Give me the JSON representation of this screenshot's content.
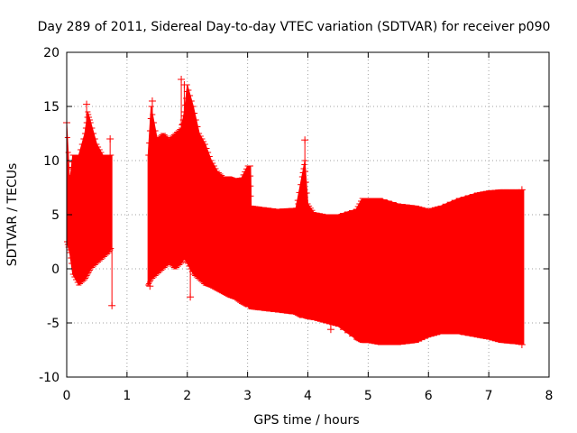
{
  "chart_data": {
    "type": "scatter",
    "title": "Day 289 of 2011, Sidereal Day-to-day VTEC variation (SDTVAR) for receiver p090",
    "xlabel": "GPS time / hours",
    "ylabel": "SDTVAR / TECUs",
    "xlim": [
      0,
      8
    ],
    "ylim": [
      -10,
      20
    ],
    "xticks": [
      "0",
      "1",
      "2",
      "3",
      "4",
      "5",
      "6",
      "7",
      "8"
    ],
    "yticks": [
      "-10",
      "-5",
      "0",
      "5",
      "10",
      "15",
      "20"
    ],
    "grid": true,
    "series_color": "#ff0000",
    "series": [
      {
        "name": "SDTVAR",
        "envelope": {
          "x": [
            0.0,
            0.05,
            0.1,
            0.2,
            0.3,
            0.35,
            0.4,
            0.5,
            0.6,
            0.7,
            0.75
          ],
          "upper": [
            13.5,
            8.0,
            10.5,
            10.5,
            12.5,
            14.5,
            13.5,
            11.5,
            10.5,
            10.5,
            10.5
          ],
          "lower": [
            2.5,
            1.5,
            -0.5,
            -1.5,
            -1.0,
            -0.5,
            0.0,
            0.5,
            1.0,
            1.5,
            2.0
          ]
        },
        "envelope2": {
          "x": [
            1.35,
            1.4,
            1.5,
            1.6,
            1.7,
            1.8,
            1.9,
            1.95,
            2.0,
            2.1,
            2.2,
            2.3,
            2.4,
            2.5,
            2.6,
            2.7,
            2.8,
            2.9,
            3.0,
            3.05,
            3.06,
            3.2,
            3.5,
            3.8,
            3.9,
            3.95,
            4.0,
            4.1,
            4.3,
            4.5,
            4.8,
            4.9,
            5.0,
            5.2,
            5.5,
            5.8,
            6.0,
            6.2,
            6.5,
            6.8,
            7.0,
            7.2,
            7.58
          ],
          "upper": [
            10.5,
            15.0,
            12.0,
            12.5,
            12.0,
            12.5,
            13.0,
            14.5,
            17.0,
            15.0,
            12.5,
            11.5,
            10.0,
            9.0,
            8.5,
            8.5,
            8.3,
            8.4,
            9.5,
            9.5,
            5.8,
            5.7,
            5.5,
            5.6,
            8.5,
            10.0,
            6.0,
            5.2,
            5.0,
            5.0,
            5.5,
            6.5,
            6.5,
            6.5,
            6.0,
            5.8,
            5.5,
            5.8,
            6.5,
            7.0,
            7.2,
            7.3,
            7.3
          ],
          "lower": [
            -1.5,
            -1.0,
            -0.5,
            0.0,
            0.5,
            0.0,
            0.5,
            1.0,
            0.5,
            -0.5,
            -1.0,
            -1.5,
            -1.7,
            -2.0,
            -2.3,
            -2.6,
            -2.8,
            -3.2,
            -3.5,
            -3.5,
            -3.7,
            -3.8,
            -4.0,
            -4.2,
            -4.5,
            -4.5,
            -4.6,
            -4.7,
            -5.0,
            -5.3,
            -6.5,
            -6.8,
            -6.8,
            -7.0,
            -7.0,
            -6.8,
            -6.3,
            -6.0,
            -6.0,
            -6.3,
            -6.5,
            -6.8,
            -7.0
          ]
        },
        "outliers": [
          {
            "x": 0.0,
            "y": 13.5
          },
          {
            "x": 0.72,
            "y": 12.0
          },
          {
            "x": 0.75,
            "y": -3.4
          },
          {
            "x": 0.33,
            "y": 15.2
          },
          {
            "x": 1.38,
            "y": -1.6
          },
          {
            "x": 1.42,
            "y": 15.5
          },
          {
            "x": 1.9,
            "y": 17.5
          },
          {
            "x": 1.95,
            "y": 17.0
          },
          {
            "x": 1.92,
            "y": 13.3
          },
          {
            "x": 2.05,
            "y": -2.6
          },
          {
            "x": 3.85,
            "y": 6.0
          },
          {
            "x": 3.95,
            "y": 11.9
          },
          {
            "x": 4.38,
            "y": -5.6
          },
          {
            "x": 7.55,
            "y": 7.3
          },
          {
            "x": 7.55,
            "y": -7.0
          }
        ]
      }
    ]
  }
}
